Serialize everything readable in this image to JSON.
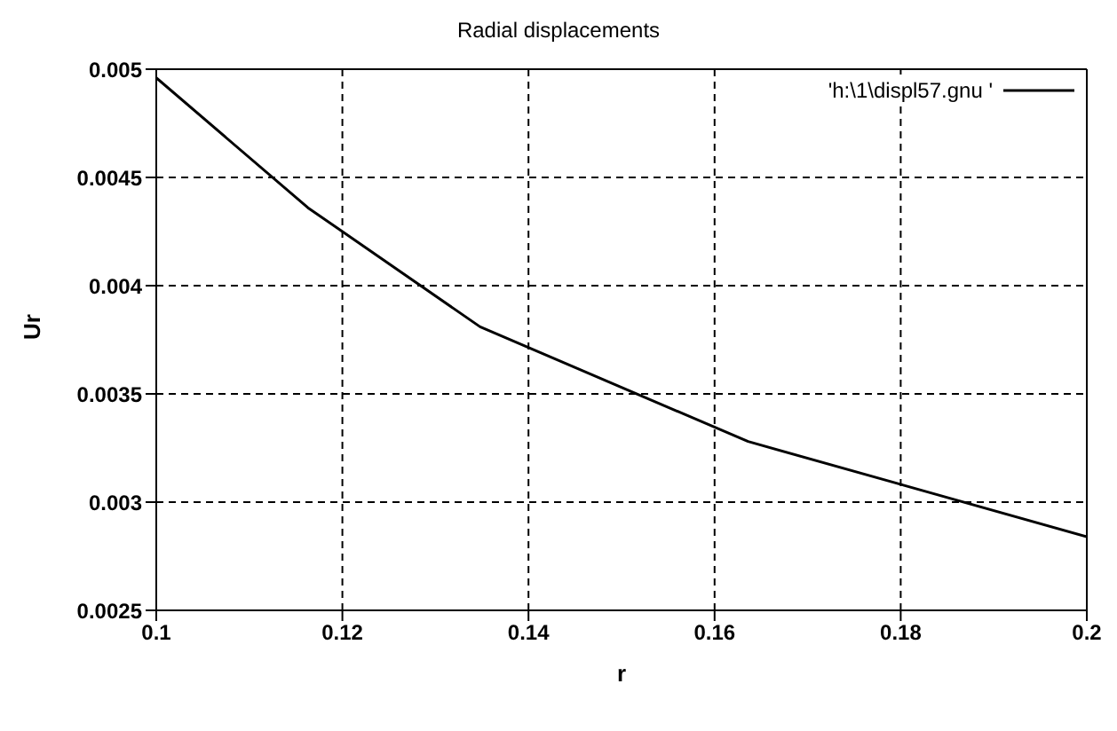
{
  "chart_data": {
    "type": "line",
    "title": "Radial displacements",
    "xlabel": "r",
    "ylabel": "Ur",
    "x": [
      0.1,
      0.1163,
      0.1348,
      0.1636,
      0.2
    ],
    "series": [
      {
        "name": "'h:\\1\\displ57.gnu '",
        "color": "#000000",
        "values": [
          0.00496,
          0.00436,
          0.00381,
          0.00328,
          0.00284
        ]
      }
    ],
    "xlim": [
      0.1,
      0.2
    ],
    "xticks": [
      0.1,
      0.12,
      0.14,
      0.16,
      0.18,
      0.2
    ],
    "ylim": [
      0.0025,
      0.005
    ],
    "yticks": [
      0.0025,
      0.003,
      0.0035,
      0.004,
      0.0045,
      0.005
    ],
    "grid": true,
    "legend": "top right",
    "marker": "none",
    "line_style": "solid"
  }
}
